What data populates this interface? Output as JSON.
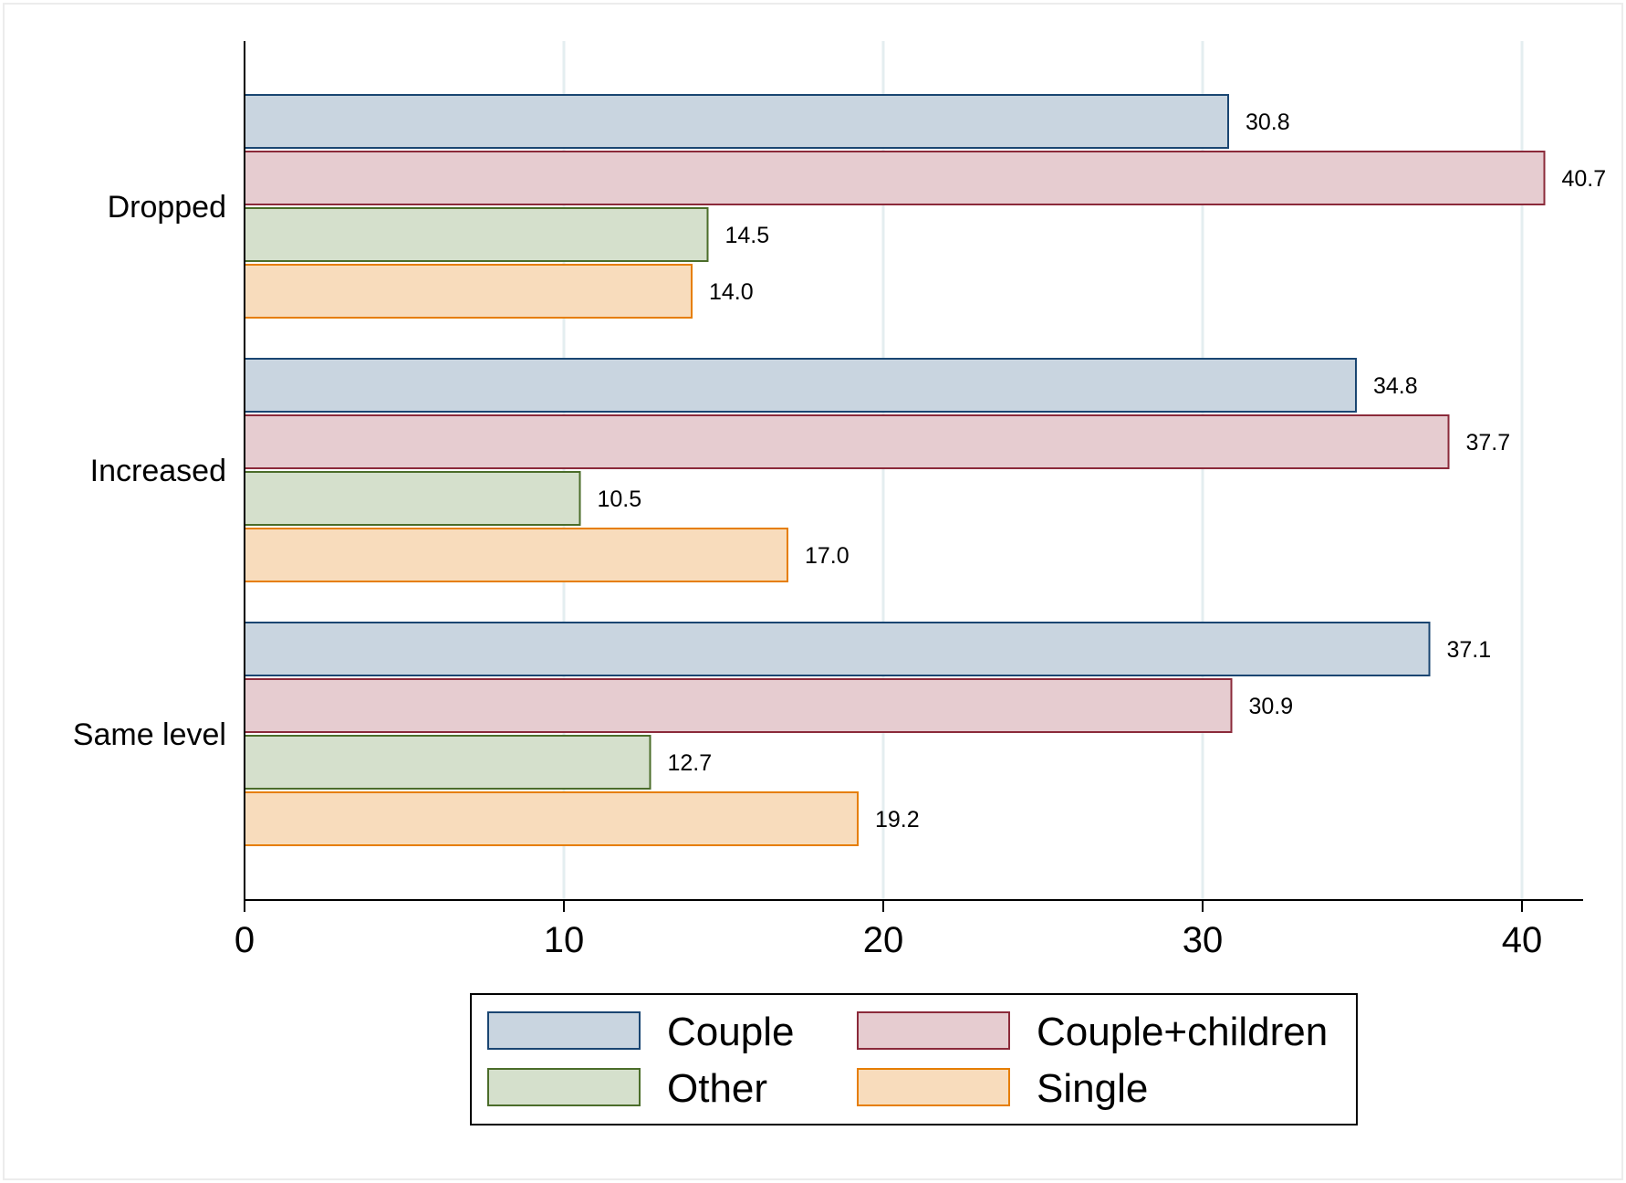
{
  "chart_data": {
    "type": "bar",
    "orientation": "horizontal",
    "categories": [
      "Dropped",
      "Increased",
      "Same level"
    ],
    "series": [
      {
        "name": "Couple",
        "values": [
          30.8,
          34.8,
          37.1
        ],
        "fill": "#c9d5e0",
        "stroke": "#1a4672"
      },
      {
        "name": "Couple+children",
        "values": [
          40.7,
          37.7,
          30.9
        ],
        "fill": "#e6ccd0",
        "stroke": "#8b2a3a"
      },
      {
        "name": "Other",
        "values": [
          14.5,
          10.5,
          12.7
        ],
        "fill": "#d5e0cc",
        "stroke": "#4b6d2a"
      },
      {
        "name": "Single",
        "values": [
          14.0,
          17.0,
          19.2
        ],
        "fill": "#f8dcbc",
        "stroke": "#e67e00"
      }
    ],
    "data_labels": [
      [
        "30.8",
        "34.8",
        "37.1"
      ],
      [
        "40.7",
        "37.7",
        "30.9"
      ],
      [
        "14.5",
        "10.5",
        "12.7"
      ],
      [
        "14.0",
        "17.0",
        "19.2"
      ]
    ],
    "x_ticks": [
      0,
      10,
      20,
      30,
      40
    ],
    "x_tick_labels": [
      "0",
      "10",
      "20",
      "30",
      "40"
    ],
    "xlim": [
      0,
      42
    ],
    "title": "",
    "xlabel": "",
    "ylabel": "",
    "grid": true,
    "legend_position": "bottom",
    "legend_columns": 2,
    "colors": {
      "background": "#ffffff",
      "gridline": "#e4eef0",
      "axis": "#000000"
    }
  }
}
